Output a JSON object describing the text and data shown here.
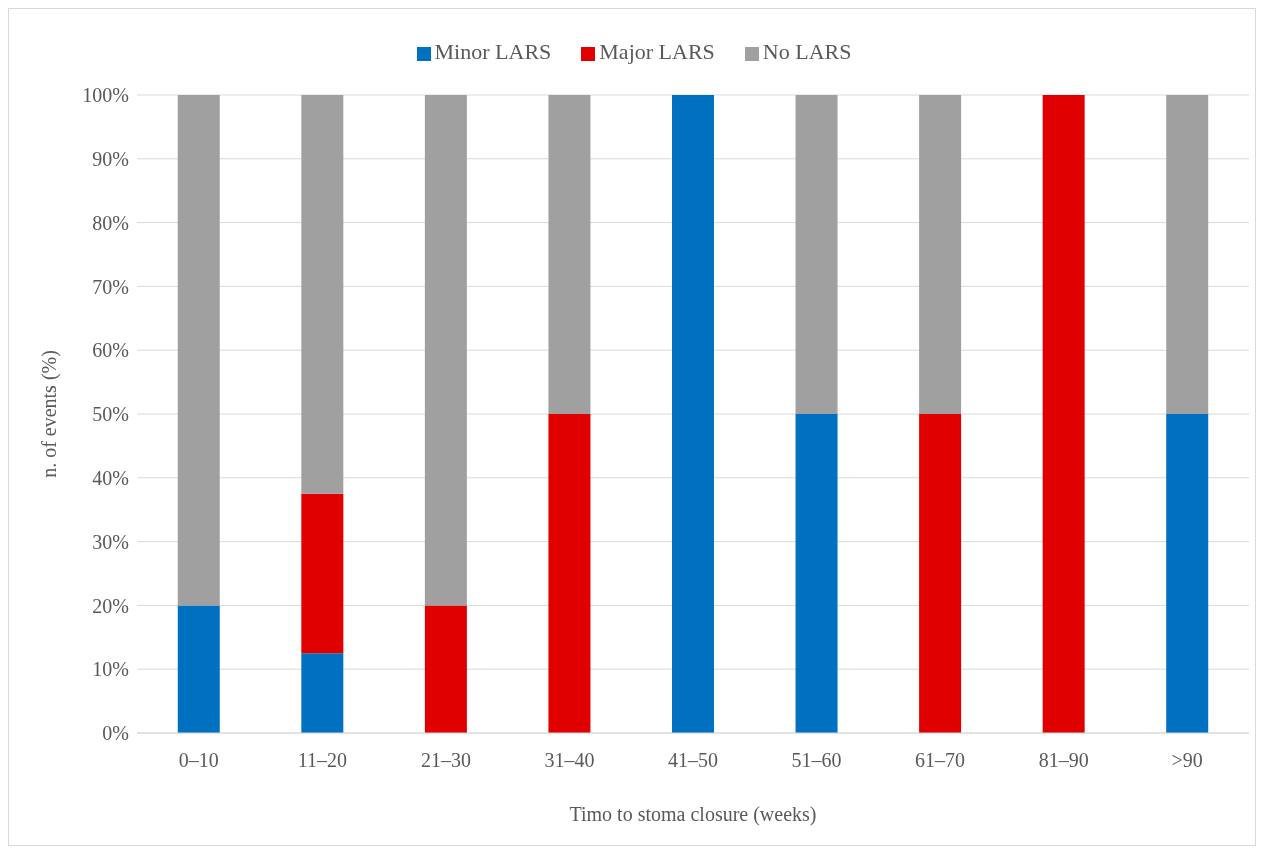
{
  "chart_data": {
    "type": "bar",
    "stacked": true,
    "xlabel": "Timo to stoma closure (weeks)",
    "ylabel": "n. of events (%)",
    "categories": [
      "0–10",
      "11–20",
      "21–30",
      "31–40",
      "41–50",
      "51–60",
      "61–70",
      "81–90",
      ">90"
    ],
    "series": [
      {
        "name": "Minor LARS",
        "color": "#0070c0",
        "values": [
          20,
          12.5,
          0,
          0,
          100,
          50,
          0,
          0,
          50
        ]
      },
      {
        "name": "Major LARS",
        "color": "#e00000",
        "values": [
          0,
          25,
          20,
          50,
          0,
          0,
          50,
          100,
          0
        ]
      },
      {
        "name": "No LARS",
        "color": "#a0a0a0",
        "values": [
          80,
          62.5,
          80,
          50,
          0,
          50,
          50,
          0,
          50
        ]
      }
    ],
    "ylim": [
      0,
      100
    ],
    "yticks": [
      {
        "value": 0,
        "label": "0%"
      },
      {
        "value": 10,
        "label": "10%"
      },
      {
        "value": 20,
        "label": "20%"
      },
      {
        "value": 30,
        "label": "30%"
      },
      {
        "value": 40,
        "label": "40%"
      },
      {
        "value": 50,
        "label": "50%"
      },
      {
        "value": 60,
        "label": "60%"
      },
      {
        "value": 70,
        "label": "70%"
      },
      {
        "value": 80,
        "label": "80%"
      },
      {
        "value": 90,
        "label": "90%"
      },
      {
        "value": 100,
        "label": "100%"
      }
    ],
    "grid": "y",
    "legend": "top"
  }
}
